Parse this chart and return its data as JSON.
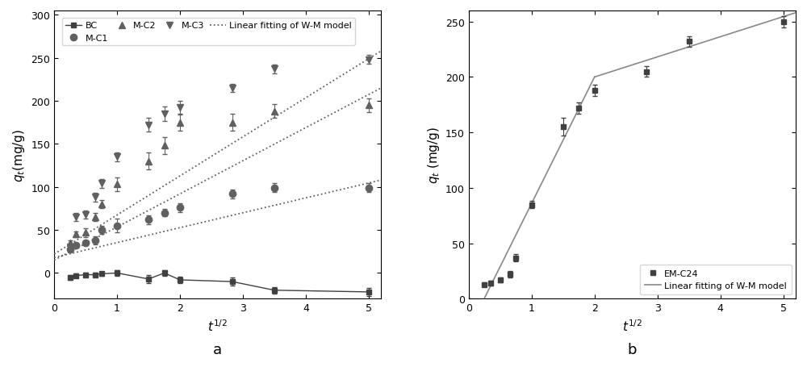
{
  "left": {
    "xlim": [
      0,
      5.2
    ],
    "ylim": [
      -30,
      305
    ],
    "yticks": [
      0,
      50,
      100,
      150,
      200,
      250,
      300
    ],
    "xticks": [
      0,
      1,
      2,
      3,
      4,
      5
    ],
    "BC": {
      "x": [
        0.25,
        0.35,
        0.5,
        0.65,
        0.75,
        1.0,
        1.5,
        1.75,
        2.0,
        2.83,
        3.5,
        5.0
      ],
      "y": [
        -5,
        -3,
        -2,
        -2,
        -1,
        0,
        -7,
        0,
        -8,
        -10,
        -20,
        -22
      ],
      "yerr": [
        3,
        2,
        2,
        2,
        2,
        3,
        5,
        3,
        4,
        5,
        4,
        5
      ]
    },
    "MC1": {
      "x": [
        0.25,
        0.35,
        0.5,
        0.65,
        0.75,
        1.0,
        1.5,
        1.75,
        2.0,
        2.83,
        3.5,
        5.0
      ],
      "y": [
        28,
        32,
        35,
        38,
        50,
        55,
        62,
        70,
        76,
        92,
        99,
        99
      ],
      "yerr": [
        3,
        3,
        3,
        5,
        5,
        8,
        5,
        4,
        5,
        5,
        5,
        5
      ]
    },
    "MC2": {
      "x": [
        0.25,
        0.35,
        0.5,
        0.65,
        0.75,
        1.0,
        1.5,
        1.75,
        2.0,
        2.83,
        3.5,
        5.0
      ],
      "y": [
        35,
        45,
        47,
        65,
        80,
        103,
        130,
        148,
        175,
        175,
        188,
        195
      ],
      "yerr": [
        3,
        3,
        5,
        5,
        5,
        8,
        10,
        10,
        10,
        10,
        8,
        8
      ]
    },
    "MC3": {
      "x": [
        0.25,
        0.35,
        0.5,
        0.65,
        0.75,
        1.0,
        1.5,
        1.75,
        2.0,
        2.83,
        3.5,
        5.0
      ],
      "y": [
        30,
        65,
        68,
        88,
        104,
        135,
        172,
        185,
        192,
        215,
        237,
        248
      ],
      "yerr": [
        3,
        5,
        5,
        5,
        5,
        5,
        8,
        8,
        8,
        5,
        5,
        5
      ]
    },
    "fit_MC1": {
      "x": [
        0.0,
        5.2
      ],
      "y": [
        18,
        108
      ]
    },
    "fit_MC2": {
      "x": [
        0.0,
        5.2
      ],
      "y": [
        15,
        215
      ]
    },
    "fit_MC3": {
      "x": [
        0.0,
        5.2
      ],
      "y": [
        22,
        258
      ]
    }
  },
  "right": {
    "xlim": [
      0,
      5.2
    ],
    "ylim": [
      0,
      260
    ],
    "yticks": [
      0,
      50,
      100,
      150,
      200,
      250
    ],
    "xticks": [
      0,
      1,
      2,
      3,
      4,
      5
    ],
    "EMC24": {
      "x": [
        0.25,
        0.35,
        0.5,
        0.65,
        0.75,
        1.0,
        1.5,
        1.75,
        2.0,
        2.83,
        3.5,
        5.0
      ],
      "y": [
        13,
        14,
        17,
        22,
        37,
        85,
        155,
        172,
        188,
        205,
        232,
        250
      ],
      "yerr": [
        2,
        2,
        2,
        3,
        3,
        3,
        8,
        5,
        5,
        5,
        5,
        5
      ]
    },
    "fit_seg1": {
      "x": [
        0.2,
        2.0
      ],
      "y": [
        -5,
        200
      ]
    },
    "fit_seg2": {
      "x": [
        2.0,
        5.2
      ],
      "y": [
        200,
        258
      ]
    }
  },
  "gray": "#606060",
  "darkgray": "#404040",
  "fitcolor": "#888888",
  "markersize": 5,
  "elinewidth": 0.8,
  "capsize": 2
}
